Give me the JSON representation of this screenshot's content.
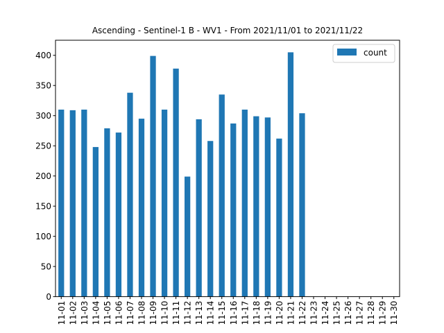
{
  "chart_data": {
    "type": "bar",
    "title": "Ascending - Sentinel-1 B - WV1 - From 2021/11/01 to 2021/11/22",
    "xlabel": "",
    "ylabel": "",
    "ylim": [
      0,
      425
    ],
    "yticks": [
      0,
      50,
      100,
      150,
      200,
      250,
      300,
      350,
      400
    ],
    "categories": [
      "11-01",
      "11-02",
      "11-03",
      "11-04",
      "11-05",
      "11-06",
      "11-07",
      "11-08",
      "11-09",
      "11-10",
      "11-11",
      "11-12",
      "11-13",
      "11-14",
      "11-15",
      "11-16",
      "11-17",
      "11-18",
      "11-19",
      "11-20",
      "11-21",
      "11-22",
      "11-23",
      "11-24",
      "11-25",
      "11-26",
      "11-27",
      "11-28",
      "11-29",
      "11-30"
    ],
    "series": [
      {
        "name": "count",
        "color": "#1f77b4",
        "values": [
          310,
          309,
          310,
          248,
          279,
          272,
          338,
          295,
          399,
          310,
          378,
          199,
          294,
          258,
          335,
          287,
          310,
          299,
          297,
          262,
          405,
          304,
          null,
          null,
          null,
          null,
          null,
          null,
          null,
          null
        ]
      }
    ],
    "legend": {
      "position": "top-right"
    },
    "grid": false
  }
}
